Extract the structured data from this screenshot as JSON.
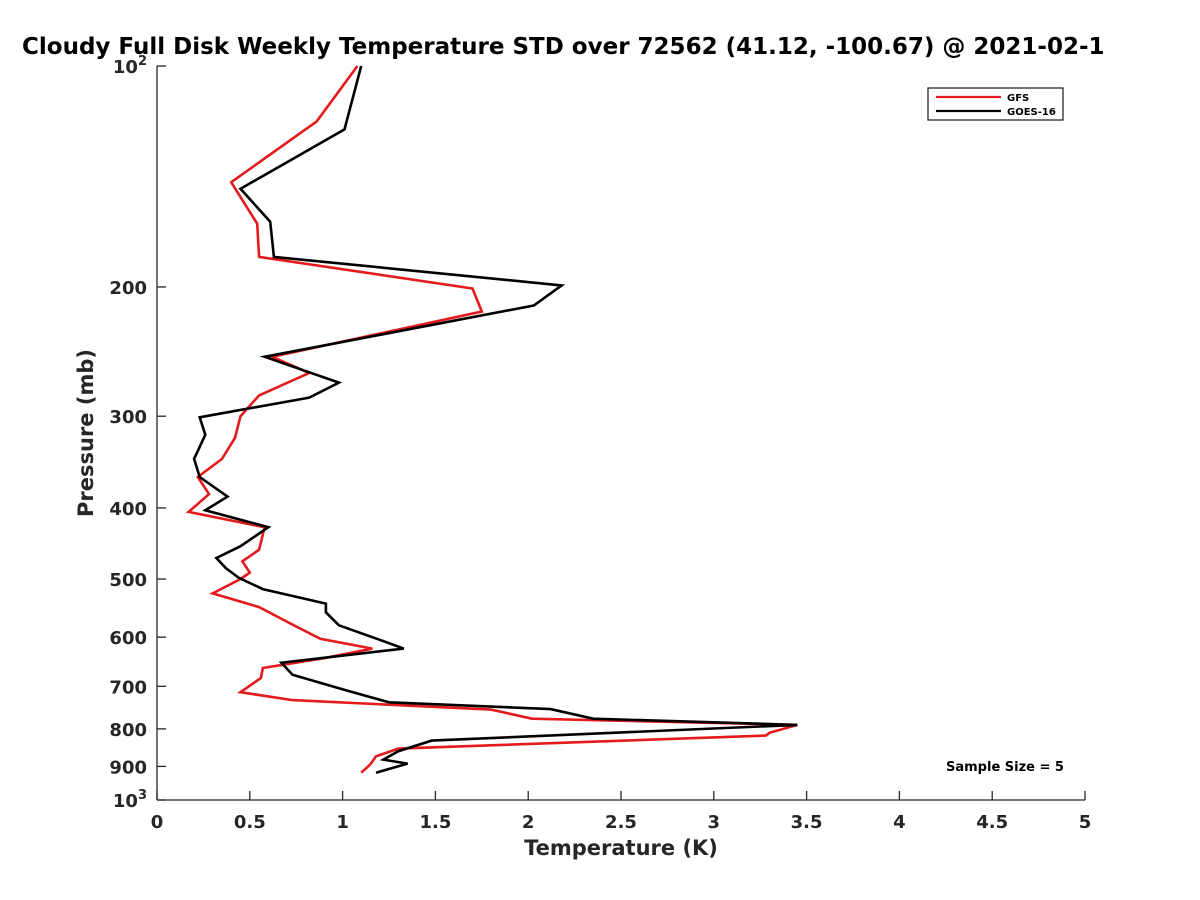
{
  "chart_data": {
    "type": "line",
    "title": "Cloudy Full Disk Weekly Temperature STD over 72562 (41.12, -100.67) @ 2021-02-1",
    "xlabel": "Temperature (K)",
    "ylabel": "Pressure (mb)",
    "xlim": [
      0,
      5
    ],
    "ylim": [
      100,
      1000
    ],
    "y_scale": "log",
    "y_reversed": true,
    "grid": false,
    "legend_position": "top-right",
    "x_ticks": [
      {
        "v": 0,
        "label": "0"
      },
      {
        "v": 0.5,
        "label": "0.5"
      },
      {
        "v": 1,
        "label": "1"
      },
      {
        "v": 1.5,
        "label": "1.5"
      },
      {
        "v": 2,
        "label": "2"
      },
      {
        "v": 2.5,
        "label": "2.5"
      },
      {
        "v": 3,
        "label": "3"
      },
      {
        "v": 3.5,
        "label": "3.5"
      },
      {
        "v": 4,
        "label": "4"
      },
      {
        "v": 4.5,
        "label": "4.5"
      },
      {
        "v": 5,
        "label": "5"
      }
    ],
    "y_ticks": [
      {
        "v": 100,
        "base": "10",
        "exp": "2"
      },
      {
        "v": 200,
        "label": "200"
      },
      {
        "v": 300,
        "label": "300"
      },
      {
        "v": 400,
        "label": "400"
      },
      {
        "v": 500,
        "label": "500"
      },
      {
        "v": 600,
        "label": "600"
      },
      {
        "v": 700,
        "label": "700"
      },
      {
        "v": 800,
        "label": "800"
      },
      {
        "v": 900,
        "label": "900"
      },
      {
        "v": 1000,
        "base": "10",
        "exp": "3"
      }
    ],
    "series": [
      {
        "name": "GFS",
        "color": "#e41a1c",
        "points": [
          [
            1.08,
            100
          ],
          [
            0.86,
            119
          ],
          [
            0.4,
            144
          ],
          [
            0.54,
            164
          ],
          [
            0.55,
            182
          ],
          [
            1.7,
            201
          ],
          [
            1.75,
            216
          ],
          [
            0.62,
            249
          ],
          [
            0.82,
            262
          ],
          [
            0.55,
            281
          ],
          [
            0.45,
            300
          ],
          [
            0.42,
            321
          ],
          [
            0.35,
            343
          ],
          [
            0.22,
            363
          ],
          [
            0.28,
            383
          ],
          [
            0.17,
            405
          ],
          [
            0.58,
            425
          ],
          [
            0.55,
            456
          ],
          [
            0.46,
            473
          ],
          [
            0.5,
            490
          ],
          [
            0.45,
            500
          ],
          [
            0.3,
            523
          ],
          [
            0.55,
            546
          ],
          [
            0.72,
            575
          ],
          [
            0.88,
            603
          ],
          [
            1.16,
            622
          ],
          [
            0.9,
            641
          ],
          [
            0.57,
            661
          ],
          [
            0.56,
            682
          ],
          [
            0.45,
            713
          ],
          [
            0.73,
            731
          ],
          [
            1.8,
            753
          ],
          [
            2.02,
            775
          ],
          [
            3.45,
            790
          ],
          [
            3.3,
            810
          ],
          [
            3.28,
            817
          ],
          [
            1.3,
            851
          ],
          [
            1.18,
            872
          ],
          [
            1.15,
            894
          ],
          [
            1.1,
            918
          ]
        ]
      },
      {
        "name": "GOES-16",
        "color": "#000000",
        "points": [
          [
            1.1,
            100
          ],
          [
            1.01,
            122
          ],
          [
            0.45,
            147
          ],
          [
            0.61,
            163
          ],
          [
            0.63,
            182
          ],
          [
            2.18,
            199
          ],
          [
            2.03,
            212
          ],
          [
            0.58,
            249
          ],
          [
            0.98,
            270
          ],
          [
            0.82,
            283
          ],
          [
            0.23,
            301
          ],
          [
            0.26,
            318
          ],
          [
            0.2,
            343
          ],
          [
            0.23,
            363
          ],
          [
            0.38,
            386
          ],
          [
            0.26,
            403
          ],
          [
            0.6,
            425
          ],
          [
            0.45,
            451
          ],
          [
            0.32,
            468
          ],
          [
            0.37,
            483
          ],
          [
            0.44,
            498
          ],
          [
            0.57,
            516
          ],
          [
            0.91,
            540
          ],
          [
            0.91,
            555
          ],
          [
            0.98,
            578
          ],
          [
            1.2,
            605
          ],
          [
            1.33,
            622
          ],
          [
            0.67,
            650
          ],
          [
            0.73,
            675
          ],
          [
            1.02,
            709
          ],
          [
            1.25,
            736
          ],
          [
            2.12,
            752
          ],
          [
            2.35,
            775
          ],
          [
            3.45,
            790
          ],
          [
            1.48,
            830
          ],
          [
            1.3,
            858
          ],
          [
            1.22,
            881
          ],
          [
            1.35,
            892
          ],
          [
            1.18,
            918
          ]
        ]
      }
    ],
    "annotation": "Sample Size = 5"
  }
}
